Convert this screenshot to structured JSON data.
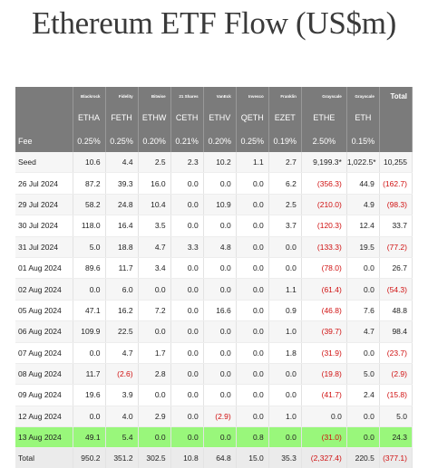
{
  "title": "Ethereum ETF Flow (US$m)",
  "chart_data": {
    "type": "table",
    "title": "Ethereum ETF Flow (US$m)",
    "issuers": [
      "Blackrock",
      "Fidelity",
      "Bitwise",
      "21 Shares",
      "VanEck",
      "Invesco",
      "Franklin",
      "Grayscale",
      "Grayscale"
    ],
    "total_label": "Total",
    "tickers": [
      "ETHA",
      "FETH",
      "ETHW",
      "CETH",
      "ETHV",
      "QETH",
      "EZET",
      "ETHE",
      "ETH"
    ],
    "fee_label": "Fee",
    "fees": [
      "0.25%",
      "0.25%",
      "0.20%",
      "0.21%",
      "0.20%",
      "0.25%",
      "0.19%",
      "2.50%",
      "0.15%"
    ],
    "rows": [
      {
        "date": "Seed",
        "values": [
          "10.6",
          "4.4",
          "2.5",
          "2.3",
          "10.2",
          "1.1",
          "2.7",
          "9,199.3*",
          "1,022.5*",
          "10,255"
        ],
        "highlight": false
      },
      {
        "date": "26 Jul 2024",
        "values": [
          "87.2",
          "39.3",
          "16.0",
          "0.0",
          "0.0",
          "0.0",
          "6.2",
          "(356.3)",
          "44.9",
          "(162.7)"
        ],
        "highlight": false
      },
      {
        "date": "29 Jul 2024",
        "values": [
          "58.2",
          "24.8",
          "10.4",
          "0.0",
          "10.9",
          "0.0",
          "2.5",
          "(210.0)",
          "4.9",
          "(98.3)"
        ],
        "highlight": false
      },
      {
        "date": "30 Jul 2024",
        "values": [
          "118.0",
          "16.4",
          "3.5",
          "0.0",
          "0.0",
          "0.0",
          "3.7",
          "(120.3)",
          "12.4",
          "33.7"
        ],
        "highlight": false
      },
      {
        "date": "31 Jul 2024",
        "values": [
          "5.0",
          "18.8",
          "4.7",
          "3.3",
          "4.8",
          "0.0",
          "0.0",
          "(133.3)",
          "19.5",
          "(77.2)"
        ],
        "highlight": false
      },
      {
        "date": "01 Aug 2024",
        "values": [
          "89.6",
          "11.7",
          "3.4",
          "0.0",
          "0.0",
          "0.0",
          "0.0",
          "(78.0)",
          "0.0",
          "26.7"
        ],
        "highlight": false
      },
      {
        "date": "02 Aug 2024",
        "values": [
          "0.0",
          "6.0",
          "0.0",
          "0.0",
          "0.0",
          "0.0",
          "1.1",
          "(61.4)",
          "0.0",
          "(54.3)"
        ],
        "highlight": false
      },
      {
        "date": "05 Aug 2024",
        "values": [
          "47.1",
          "16.2",
          "7.2",
          "0.0",
          "16.6",
          "0.0",
          "0.9",
          "(46.8)",
          "7.6",
          "48.8"
        ],
        "highlight": false
      },
      {
        "date": "06 Aug 2024",
        "values": [
          "109.9",
          "22.5",
          "0.0",
          "0.0",
          "0.0",
          "0.0",
          "1.0",
          "(39.7)",
          "4.7",
          "98.4"
        ],
        "highlight": false
      },
      {
        "date": "07 Aug 2024",
        "values": [
          "0.0",
          "4.7",
          "1.7",
          "0.0",
          "0.0",
          "0.0",
          "1.8",
          "(31.9)",
          "0.0",
          "(23.7)"
        ],
        "highlight": false
      },
      {
        "date": "08 Aug 2024",
        "values": [
          "11.7",
          "(2.6)",
          "2.8",
          "0.0",
          "0.0",
          "0.0",
          "0.0",
          "(19.8)",
          "5.0",
          "(2.9)"
        ],
        "highlight": false
      },
      {
        "date": "09 Aug 2024",
        "values": [
          "19.6",
          "3.9",
          "0.0",
          "0.0",
          "0.0",
          "0.0",
          "0.0",
          "(41.7)",
          "2.4",
          "(15.8)"
        ],
        "highlight": false
      },
      {
        "date": "12 Aug 2024",
        "values": [
          "0.0",
          "4.0",
          "2.9",
          "0.0",
          "(2.9)",
          "0.0",
          "1.0",
          "0.0",
          "0.0",
          "5.0"
        ],
        "highlight": false
      },
      {
        "date": "13 Aug 2024",
        "values": [
          "49.1",
          "5.4",
          "0.0",
          "0.0",
          "0.0",
          "0.8",
          "0.0",
          "(31.0)",
          "0.0",
          "24.3"
        ],
        "highlight": true
      }
    ],
    "total_row": {
      "label": "Total",
      "values": [
        "950.2",
        "351.2",
        "302.5",
        "10.8",
        "64.8",
        "15.0",
        "35.3",
        "(2,327.4)",
        "220.5",
        "(377.1)"
      ]
    },
    "colors": {
      "header": "#7b7b7b",
      "highlight": "#99f77b",
      "negative": "#d01010"
    }
  }
}
